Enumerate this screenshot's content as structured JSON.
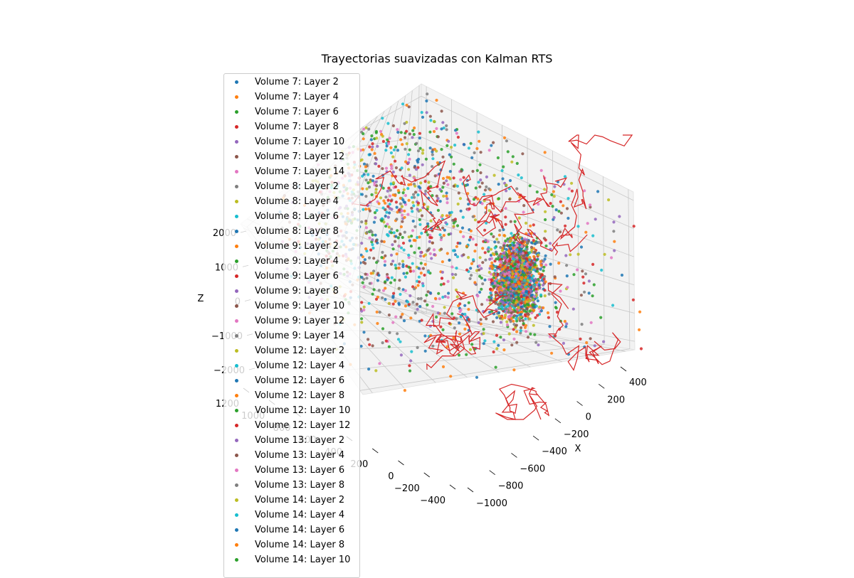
{
  "chart_data": {
    "type": "scatter",
    "projection": "3d",
    "title": "Trayectorias suavizadas con Kalman RTS",
    "xlabel": "X",
    "ylabel": "",
    "zlabel": "Z",
    "xlim": [
      -1000,
      500
    ],
    "ylim": [
      -450,
      1250
    ],
    "zlim": [
      -2200,
      2200
    ],
    "x_ticks": [
      "−1000",
      "−800",
      "−600",
      "−400",
      "−200",
      "0",
      "200",
      "400"
    ],
    "y_ticks": [
      "−400",
      "−200",
      "0",
      "200",
      "400",
      "600",
      "800",
      "1000",
      "1200"
    ],
    "z_ticks": [
      "−2000",
      "−1000",
      "0",
      "1000",
      "2000"
    ],
    "grid": true,
    "legend_position": "upper-left",
    "series": [
      {
        "name": "Volume 7: Layer 2",
        "color": "#1f77b4"
      },
      {
        "name": "Volume 7: Layer 4",
        "color": "#ff7f0e"
      },
      {
        "name": "Volume 7: Layer 6",
        "color": "#2ca02c"
      },
      {
        "name": "Volume 7: Layer 8",
        "color": "#d62728"
      },
      {
        "name": "Volume 7: Layer 10",
        "color": "#9467bd"
      },
      {
        "name": "Volume 7: Layer 12",
        "color": "#8c564b"
      },
      {
        "name": "Volume 7: Layer 14",
        "color": "#e377c2"
      },
      {
        "name": "Volume 8: Layer 2",
        "color": "#7f7f7f"
      },
      {
        "name": "Volume 8: Layer 4",
        "color": "#bcbd22"
      },
      {
        "name": "Volume 8: Layer 6",
        "color": "#17becf"
      },
      {
        "name": "Volume 8: Layer 8",
        "color": "#1f77b4"
      },
      {
        "name": "Volume 9: Layer 2",
        "color": "#ff7f0e"
      },
      {
        "name": "Volume 9: Layer 4",
        "color": "#2ca02c"
      },
      {
        "name": "Volume 9: Layer 6",
        "color": "#d62728"
      },
      {
        "name": "Volume 9: Layer 8",
        "color": "#9467bd"
      },
      {
        "name": "Volume 9: Layer 10",
        "color": "#8c564b"
      },
      {
        "name": "Volume 9: Layer 12",
        "color": "#e377c2"
      },
      {
        "name": "Volume 9: Layer 14",
        "color": "#7f7f7f"
      },
      {
        "name": "Volume 12: Layer 2",
        "color": "#bcbd22"
      },
      {
        "name": "Volume 12: Layer 4",
        "color": "#17becf"
      },
      {
        "name": "Volume 12: Layer 6",
        "color": "#1f77b4"
      },
      {
        "name": "Volume 12: Layer 8",
        "color": "#ff7f0e"
      },
      {
        "name": "Volume 12: Layer 10",
        "color": "#2ca02c"
      },
      {
        "name": "Volume 12: Layer 12",
        "color": "#d62728"
      },
      {
        "name": "Volume 13: Layer 2",
        "color": "#9467bd"
      },
      {
        "name": "Volume 13: Layer 4",
        "color": "#8c564b"
      },
      {
        "name": "Volume 13: Layer 6",
        "color": "#e377c2"
      },
      {
        "name": "Volume 13: Layer 8",
        "color": "#7f7f7f"
      },
      {
        "name": "Volume 14: Layer 2",
        "color": "#bcbd22"
      },
      {
        "name": "Volume 14: Layer 4",
        "color": "#17becf"
      },
      {
        "name": "Volume 14: Layer 6",
        "color": "#1f77b4"
      },
      {
        "name": "Volume 14: Layer 8",
        "color": "#ff7f0e"
      },
      {
        "name": "Volume 14: Layer 10",
        "color": "#2ca02c"
      }
    ],
    "trajectory_color": "#d62728"
  }
}
